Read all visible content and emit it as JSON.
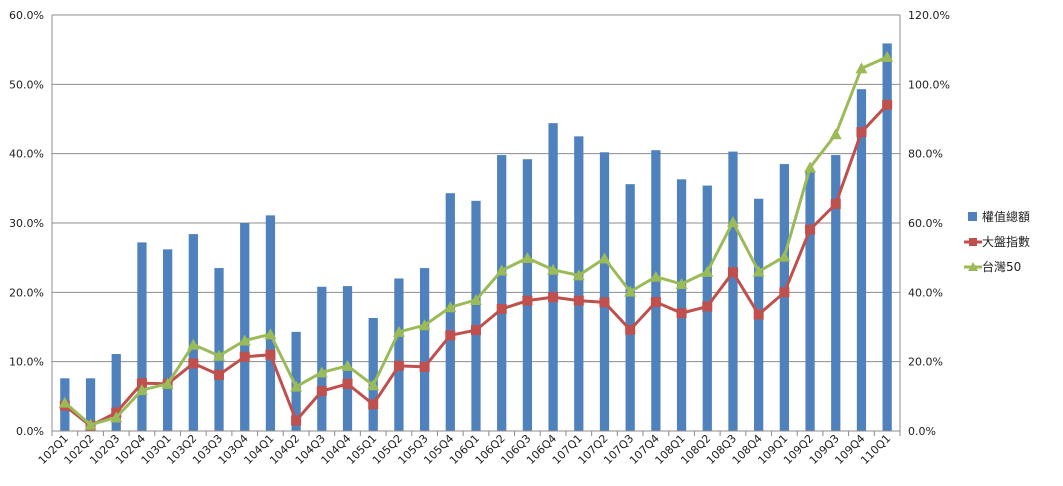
{
  "chart_data": {
    "type": "bar",
    "title": "",
    "categories": [
      "102Q1",
      "102Q2",
      "102Q3",
      "102Q4",
      "103Q1",
      "103Q2",
      "103Q3",
      "103Q4",
      "104Q1",
      "104Q2",
      "104Q3",
      "104Q4",
      "105Q1",
      "105Q2",
      "105Q3",
      "105Q4",
      "106Q1",
      "106Q2",
      "106Q3",
      "106Q4",
      "107Q1",
      "107Q2",
      "107Q3",
      "107Q4",
      "108Q1",
      "108Q2",
      "108Q3",
      "108Q4",
      "109Q1",
      "109Q2",
      "109Q3",
      "109Q4",
      "110Q1"
    ],
    "y_left": {
      "ticks": [
        "0.0%",
        "10.0%",
        "20.0%",
        "30.0%",
        "40.0%",
        "50.0%",
        "60.0%"
      ],
      "ylim": [
        0,
        60
      ]
    },
    "y_right": {
      "ticks": [
        "0.0%",
        "20.0%",
        "40.0%",
        "60.0%",
        "80.0%",
        "100.0%",
        "120.0%"
      ],
      "ylim": [
        0,
        120
      ]
    },
    "grid": true,
    "legend_position": "right",
    "series": [
      {
        "name": "權值總額",
        "kind": "bar",
        "axis": "left",
        "color": "#4f81bd",
        "values": [
          7.6,
          7.6,
          11.1,
          27.2,
          26.2,
          28.4,
          23.5,
          30.0,
          31.1,
          14.3,
          20.8,
          20.9,
          16.3,
          22.0,
          23.5,
          34.3,
          33.2,
          39.8,
          39.2,
          44.4,
          42.5,
          40.2,
          35.6,
          40.5,
          36.3,
          35.4,
          40.3,
          33.5,
          38.5,
          37.6,
          39.8,
          49.3,
          55.9
        ]
      },
      {
        "name": "大盤指數",
        "kind": "line",
        "marker": "square",
        "axis": "right",
        "color": "#c0504d",
        "values": [
          7.3,
          1.5,
          5.3,
          13.8,
          13.6,
          19.5,
          16.2,
          21.4,
          22.0,
          3.0,
          11.5,
          13.6,
          7.7,
          18.8,
          18.5,
          27.6,
          29.1,
          35.2,
          37.6,
          38.6,
          37.6,
          37.1,
          29.2,
          37.2,
          34.0,
          35.9,
          45.8,
          33.6,
          40.0,
          58.1,
          65.5,
          86.2,
          94.1
        ]
      },
      {
        "name": "台灣50",
        "kind": "line",
        "marker": "triangle",
        "axis": "right",
        "color": "#9bbb59",
        "values": [
          8.2,
          1.8,
          3.9,
          11.8,
          13.6,
          24.9,
          21.7,
          26.1,
          27.9,
          12.8,
          16.9,
          18.8,
          13.2,
          28.6,
          30.5,
          35.7,
          37.8,
          46.3,
          49.9,
          46.5,
          44.9,
          49.8,
          40.2,
          44.5,
          42.4,
          45.9,
          60.3,
          46.0,
          50.3,
          76.0,
          85.6,
          104.6,
          107.9
        ]
      }
    ]
  }
}
